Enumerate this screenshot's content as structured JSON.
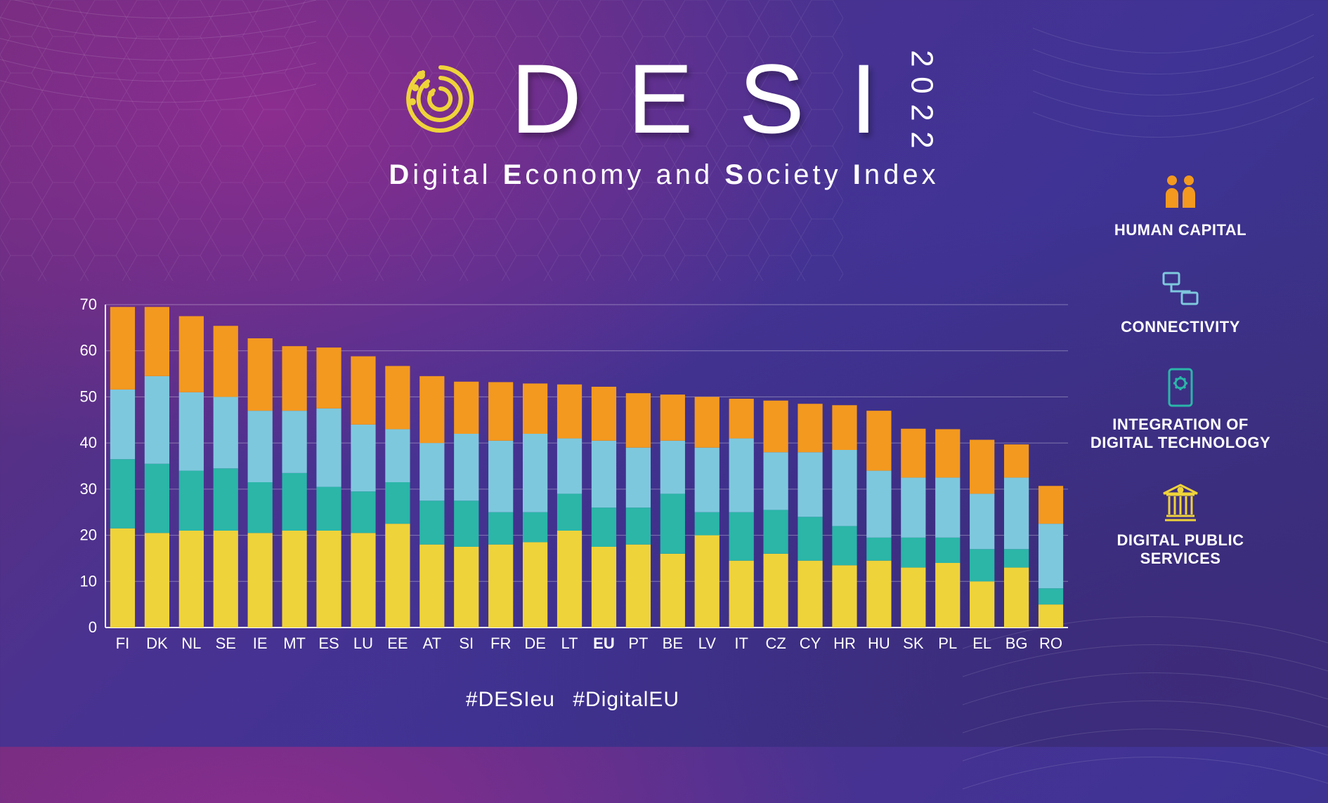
{
  "title": {
    "letters": [
      "D",
      "E",
      "S",
      "I"
    ],
    "year": "2022"
  },
  "subtitle_parts": [
    "D",
    "igital ",
    "E",
    "conomy and ",
    "S",
    "ociety ",
    "I",
    "ndex"
  ],
  "hashtags": [
    "#DESIeu",
    "#DigitalEU"
  ],
  "legend": [
    {
      "label": "HUMAN CAPITAL",
      "color": "#f3991f",
      "icon": "people"
    },
    {
      "label": "CONNECTIVITY",
      "color": "#7ec8dd",
      "icon": "network"
    },
    {
      "label": "INTEGRATION OF DIGITAL TECHNOLOGY",
      "color": "#2bb6a8",
      "icon": "cog"
    },
    {
      "label": "DIGITAL PUBLIC SERVICES",
      "color": "#efd33a",
      "icon": "building"
    }
  ],
  "chart": {
    "type": "stacked-bar",
    "ylim": [
      0,
      70
    ],
    "ytick_step": 10,
    "grid_color": "rgba(255,255,255,0.35)",
    "axis_color": "#ffffff",
    "label_color": "#ffffff",
    "label_fontsize": 22,
    "bar_width_ratio": 0.72,
    "series_order": [
      "digital_public_services",
      "integration",
      "connectivity",
      "human_capital"
    ],
    "series_colors": {
      "digital_public_services": "#efd33a",
      "integration": "#2bb6a8",
      "connectivity": "#7ec8dd",
      "human_capital": "#f3991f"
    },
    "categories": [
      "FI",
      "DK",
      "NL",
      "SE",
      "IE",
      "MT",
      "ES",
      "LU",
      "EE",
      "AT",
      "SI",
      "FR",
      "DE",
      "LT",
      "EU",
      "PT",
      "BE",
      "LV",
      "IT",
      "CZ",
      "CY",
      "HR",
      "HU",
      "SK",
      "PL",
      "EL",
      "BG",
      "RO"
    ],
    "bold_categories": [
      "EU"
    ],
    "data": {
      "FI": {
        "digital_public_services": 21.5,
        "integration": 15.0,
        "connectivity": 15.1,
        "human_capital": 17.9
      },
      "DK": {
        "digital_public_services": 20.5,
        "integration": 15.0,
        "connectivity": 19.0,
        "human_capital": 15.0
      },
      "NL": {
        "digital_public_services": 21.0,
        "integration": 13.0,
        "connectivity": 17.0,
        "human_capital": 16.5
      },
      "SE": {
        "digital_public_services": 21.0,
        "integration": 13.5,
        "connectivity": 15.5,
        "human_capital": 15.4
      },
      "IE": {
        "digital_public_services": 20.5,
        "integration": 11.0,
        "connectivity": 15.5,
        "human_capital": 15.7
      },
      "MT": {
        "digital_public_services": 21.0,
        "integration": 12.5,
        "connectivity": 13.5,
        "human_capital": 14.0
      },
      "ES": {
        "digital_public_services": 21.0,
        "integration": 9.5,
        "connectivity": 17.0,
        "human_capital": 13.2
      },
      "LU": {
        "digital_public_services": 20.5,
        "integration": 9.0,
        "connectivity": 14.5,
        "human_capital": 14.8
      },
      "EE": {
        "digital_public_services": 22.5,
        "integration": 9.0,
        "connectivity": 11.5,
        "human_capital": 13.7
      },
      "AT": {
        "digital_public_services": 18.0,
        "integration": 9.5,
        "connectivity": 12.5,
        "human_capital": 14.5
      },
      "SI": {
        "digital_public_services": 17.5,
        "integration": 10.0,
        "connectivity": 14.5,
        "human_capital": 11.3
      },
      "FR": {
        "digital_public_services": 18.0,
        "integration": 7.0,
        "connectivity": 15.5,
        "human_capital": 12.7
      },
      "DE": {
        "digital_public_services": 18.5,
        "integration": 6.5,
        "connectivity": 17.0,
        "human_capital": 10.9
      },
      "LT": {
        "digital_public_services": 21.0,
        "integration": 8.0,
        "connectivity": 12.0,
        "human_capital": 11.7
      },
      "EU": {
        "digital_public_services": 17.5,
        "integration": 8.5,
        "connectivity": 14.5,
        "human_capital": 11.7
      },
      "PT": {
        "digital_public_services": 18.0,
        "integration": 8.0,
        "connectivity": 13.0,
        "human_capital": 11.8
      },
      "BE": {
        "digital_public_services": 16.0,
        "integration": 13.0,
        "connectivity": 11.5,
        "human_capital": 10.0
      },
      "LV": {
        "digital_public_services": 20.0,
        "integration": 5.0,
        "connectivity": 14.0,
        "human_capital": 11.0
      },
      "IT": {
        "digital_public_services": 14.5,
        "integration": 10.5,
        "connectivity": 16.0,
        "human_capital": 8.6
      },
      "CZ": {
        "digital_public_services": 16.0,
        "integration": 9.5,
        "connectivity": 12.5,
        "human_capital": 11.2
      },
      "CY": {
        "digital_public_services": 14.5,
        "integration": 9.5,
        "connectivity": 14.0,
        "human_capital": 10.5
      },
      "HR": {
        "digital_public_services": 13.5,
        "integration": 8.5,
        "connectivity": 16.5,
        "human_capital": 9.7
      },
      "HU": {
        "digital_public_services": 14.5,
        "integration": 5.0,
        "connectivity": 14.5,
        "human_capital": 13.0
      },
      "SK": {
        "digital_public_services": 13.0,
        "integration": 6.5,
        "connectivity": 13.0,
        "human_capital": 10.6
      },
      "PL": {
        "digital_public_services": 14.0,
        "integration": 5.5,
        "connectivity": 13.0,
        "human_capital": 10.5
      },
      "EL": {
        "digital_public_services": 10.0,
        "integration": 7.0,
        "connectivity": 12.0,
        "human_capital": 11.7
      },
      "BG": {
        "digital_public_services": 13.0,
        "integration": 4.0,
        "connectivity": 15.5,
        "human_capital": 7.2
      },
      "RO": {
        "digital_public_services": 5.0,
        "integration": 3.5,
        "connectivity": 14.0,
        "human_capital": 8.2
      }
    }
  }
}
